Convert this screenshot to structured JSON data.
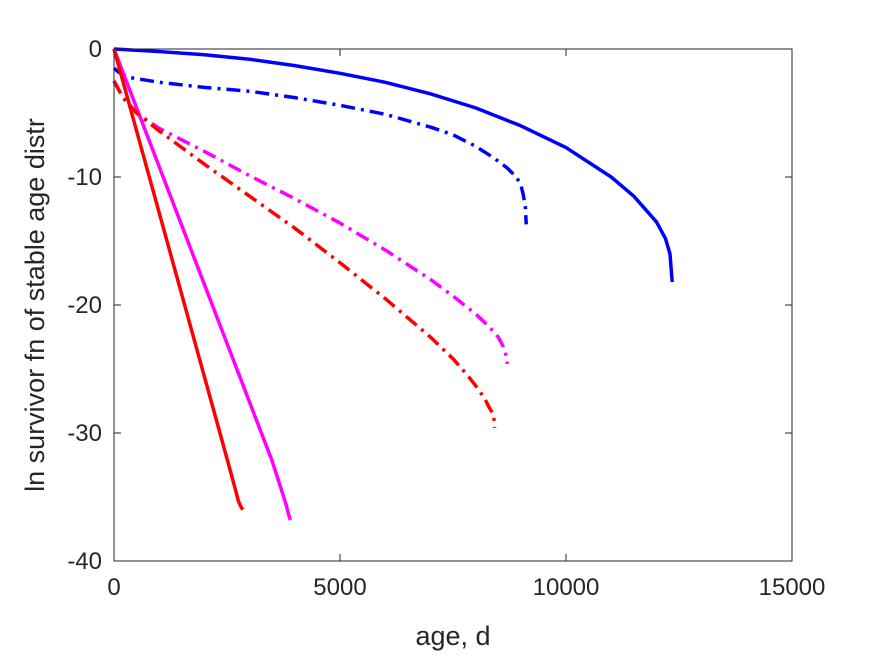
{
  "chart_data": {
    "type": "line",
    "title": "",
    "xlabel": "age, d",
    "ylabel": "ln survivor fn of stable age distr",
    "xlim": [
      0,
      15000
    ],
    "ylim": [
      -40,
      0
    ],
    "xticks": [
      0,
      5000,
      10000,
      15000
    ],
    "xtick_labels": [
      "0",
      "5000",
      "10000",
      "15000"
    ],
    "yticks": [
      0,
      -10,
      -20,
      -30,
      -40
    ],
    "ytick_labels": [
      "0",
      "-10",
      "-20",
      "-30",
      "-40"
    ],
    "grid": false,
    "legend": "none",
    "series": [
      {
        "color": "#0000ff",
        "style": "solid",
        "x": [
          0,
          1000,
          2000,
          3000,
          4000,
          5000,
          6000,
          7000,
          8000,
          9000,
          10000,
          11000,
          11500,
          12000,
          12200,
          12300,
          12350
        ],
        "y": [
          0,
          -0.2,
          -0.45,
          -0.8,
          -1.3,
          -1.9,
          -2.6,
          -3.5,
          -4.6,
          -6.0,
          -7.7,
          -10.0,
          -11.5,
          -13.5,
          -14.8,
          -16.0,
          -18.2
        ]
      },
      {
        "color": "#0000ff",
        "style": "dashdot",
        "x": [
          0,
          100,
          200,
          300,
          1000,
          2000,
          3000,
          4000,
          5000,
          6000,
          7000,
          7500,
          8000,
          8400,
          8700,
          8900,
          9000,
          9050,
          9100,
          9120
        ],
        "y": [
          -1.5,
          -1.8,
          -2.0,
          -2.2,
          -2.6,
          -3.0,
          -3.3,
          -3.8,
          -4.4,
          -5.1,
          -6.1,
          -6.7,
          -7.6,
          -8.5,
          -9.3,
          -10.0,
          -10.6,
          -11.3,
          -12.3,
          -13.7
        ]
      },
      {
        "color": "#ff00ff",
        "style": "solid",
        "x": [
          0,
          500,
          1000,
          1500,
          2000,
          2500,
          3000,
          3500,
          3800,
          3850,
          3900
        ],
        "y": [
          0,
          -4.6,
          -9.2,
          -13.8,
          -18.4,
          -23.0,
          -27.6,
          -32.2,
          -35.5,
          -36.2,
          -36.8
        ]
      },
      {
        "color": "#ff00ff",
        "style": "dashdot",
        "x": [
          0,
          200,
          500,
          1000,
          2000,
          3000,
          4000,
          5000,
          6000,
          7000,
          7500,
          8000,
          8300,
          8500,
          8650,
          8700
        ],
        "y": [
          -2.5,
          -3.8,
          -5.0,
          -6.2,
          -8.0,
          -9.9,
          -11.7,
          -13.6,
          -15.7,
          -18.0,
          -19.3,
          -20.7,
          -21.7,
          -22.5,
          -23.5,
          -24.6
        ]
      },
      {
        "color": "#ff0000",
        "style": "solid",
        "x": [
          0,
          500,
          1000,
          1500,
          2000,
          2500,
          2700,
          2750,
          2800,
          2850
        ],
        "y": [
          0,
          -6.4,
          -12.8,
          -19.2,
          -25.6,
          -32.0,
          -34.6,
          -35.3,
          -35.7,
          -36.0
        ]
      },
      {
        "color": "#ff0000",
        "style": "dashdot",
        "x": [
          0,
          200,
          500,
          1000,
          2000,
          3000,
          4000,
          5000,
          6000,
          7000,
          7500,
          7800,
          8000,
          8200,
          8300,
          8400,
          8420
        ],
        "y": [
          -2.5,
          -3.8,
          -5.0,
          -6.4,
          -9.0,
          -11.5,
          -14.0,
          -16.7,
          -19.5,
          -22.5,
          -24.2,
          -25.4,
          -26.3,
          -27.3,
          -28.0,
          -28.6,
          -29.6
        ]
      }
    ]
  }
}
